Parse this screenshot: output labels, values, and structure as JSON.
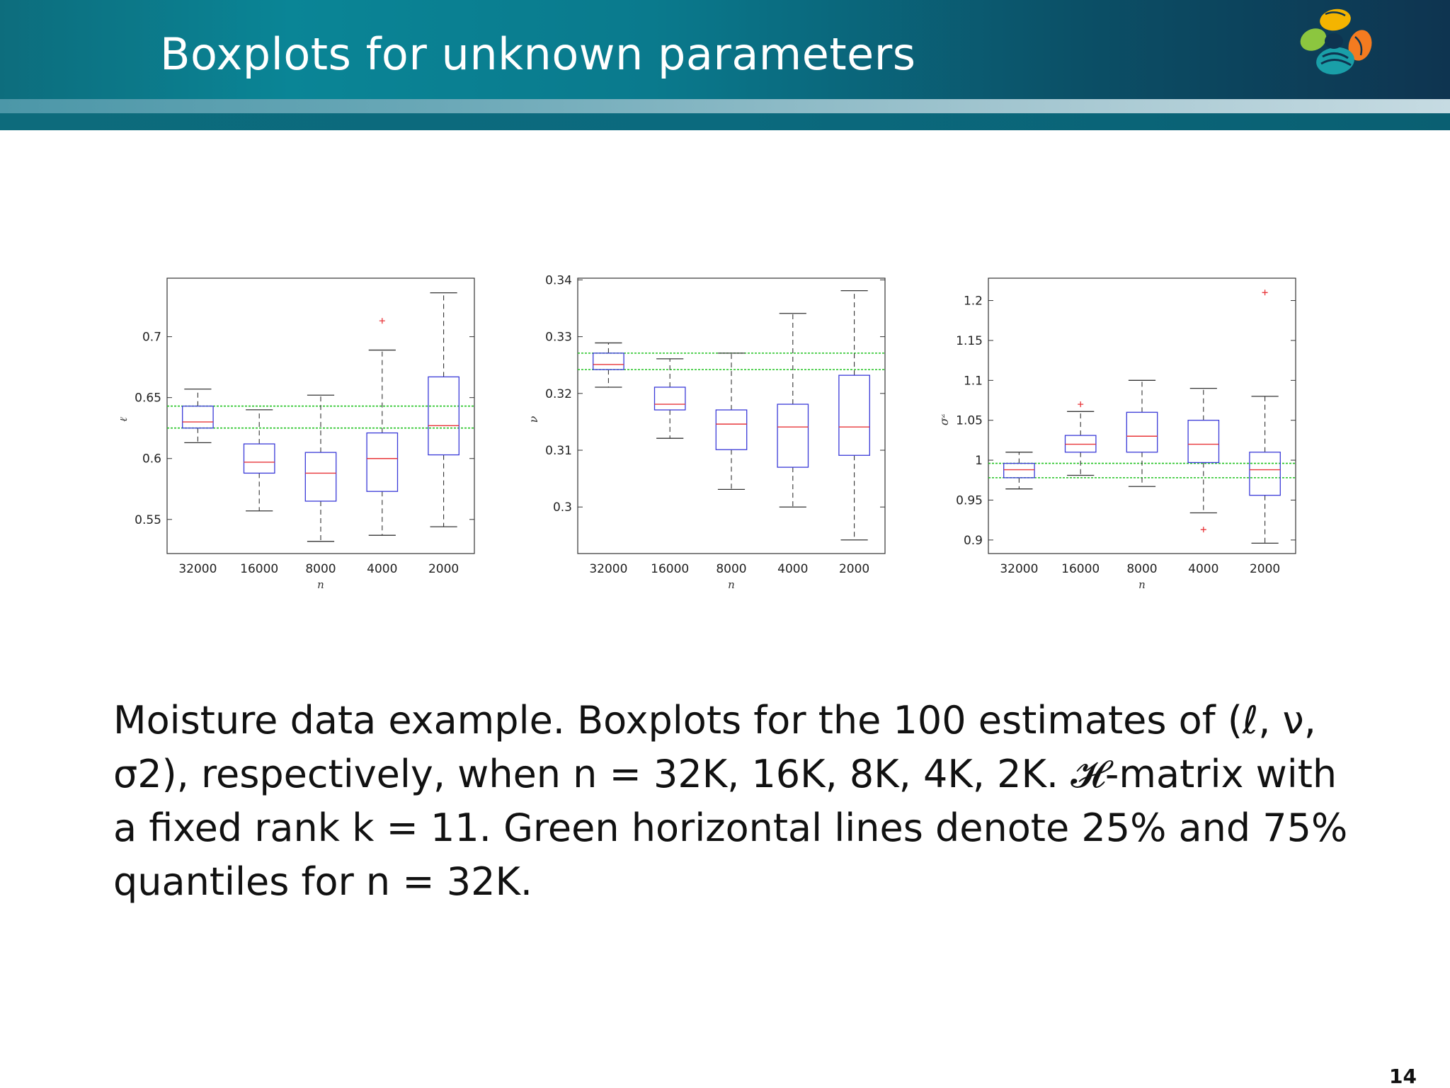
{
  "slide": {
    "title": "Boxplots for unknown parameters",
    "caption": "Moisture data example. Boxplots for the 100 estimates of (ℓ, ν, σ2), respectively, when n = 32K, 16K, 8K, 4K, 2K. 𝓗-matrix with a fixed rank k = 11. Green horizontal lines denote 25% and 75% quantiles for n = 32K.",
    "page_number": "14"
  },
  "colors": {
    "box": "#3a3ad8",
    "median": "#e8363a",
    "whisker": "#333333",
    "outlier": "#e8363a",
    "reference_lines": "#22c322"
  },
  "chart_data": [
    {
      "type": "box",
      "categories": [
        "32000",
        "16000",
        "8000",
        "4000",
        "2000"
      ],
      "xlabel": "n",
      "ylabel": "ℓ",
      "ylim": [
        0.522,
        0.748
      ],
      "yticks": [
        0.55,
        0.6,
        0.65,
        0.7
      ],
      "ytick_labels": [
        "0.55",
        "0.6",
        "0.65",
        "0.7"
      ],
      "boxes": [
        {
          "min": 0.613,
          "q1": 0.625,
          "median": 0.63,
          "q3": 0.643,
          "max": 0.657,
          "outliers": []
        },
        {
          "min": 0.557,
          "q1": 0.588,
          "median": 0.597,
          "q3": 0.612,
          "max": 0.64,
          "outliers": []
        },
        {
          "min": 0.532,
          "q1": 0.565,
          "median": 0.588,
          "q3": 0.605,
          "max": 0.652,
          "outliers": []
        },
        {
          "min": 0.537,
          "q1": 0.573,
          "median": 0.6,
          "q3": 0.621,
          "max": 0.689,
          "outliers": [
            0.713
          ]
        },
        {
          "min": 0.544,
          "q1": 0.603,
          "median": 0.627,
          "q3": 0.667,
          "max": 0.736,
          "outliers": []
        }
      ],
      "reference_lines": [
        0.625,
        0.643
      ]
    },
    {
      "type": "box",
      "categories": [
        "32000",
        "16000",
        "8000",
        "4000",
        "2000"
      ],
      "xlabel": "n",
      "ylabel": "ν",
      "ylim": [
        0.2918,
        0.3403
      ],
      "yticks": [
        0.3,
        0.31,
        0.32,
        0.33,
        0.34
      ],
      "ytick_labels": [
        "0.3",
        "0.31",
        "0.32",
        "0.33",
        "0.34"
      ],
      "boxes": [
        {
          "min": 0.3211,
          "q1": 0.3242,
          "median": 0.3251,
          "q3": 0.3271,
          "max": 0.3289,
          "outliers": []
        },
        {
          "min": 0.3121,
          "q1": 0.3171,
          "median": 0.3181,
          "q3": 0.3211,
          "max": 0.3261,
          "outliers": []
        },
        {
          "min": 0.3031,
          "q1": 0.3101,
          "median": 0.3146,
          "q3": 0.3171,
          "max": 0.3271,
          "outliers": []
        },
        {
          "min": 0.3,
          "q1": 0.307,
          "median": 0.3141,
          "q3": 0.3181,
          "max": 0.3341,
          "outliers": []
        },
        {
          "min": 0.2942,
          "q1": 0.3091,
          "median": 0.3141,
          "q3": 0.3232,
          "max": 0.3381,
          "outliers": []
        }
      ],
      "reference_lines": [
        0.3242,
        0.3271
      ]
    },
    {
      "type": "box",
      "categories": [
        "32000",
        "16000",
        "8000",
        "4000",
        "2000"
      ],
      "xlabel": "n",
      "ylabel": "σ²",
      "ylim": [
        0.883,
        1.228
      ],
      "yticks": [
        0.9,
        0.95,
        1,
        1.05,
        1.1,
        1.15,
        1.2
      ],
      "ytick_labels": [
        "0.9",
        "0.95",
        "1",
        "1.05",
        "1.1",
        "1.15",
        "1.2"
      ],
      "boxes": [
        {
          "min": 0.964,
          "q1": 0.978,
          "median": 0.988,
          "q3": 0.996,
          "max": 1.01,
          "outliers": []
        },
        {
          "min": 0.981,
          "q1": 1.01,
          "median": 1.02,
          "q3": 1.031,
          "max": 1.061,
          "outliers": [
            1.07
          ]
        },
        {
          "min": 0.967,
          "q1": 1.01,
          "median": 1.03,
          "q3": 1.06,
          "max": 1.1,
          "outliers": []
        },
        {
          "min": 0.934,
          "q1": 0.997,
          "median": 1.02,
          "q3": 1.05,
          "max": 1.09,
          "outliers": [
            0.913
          ]
        },
        {
          "min": 0.896,
          "q1": 0.956,
          "median": 0.988,
          "q3": 1.01,
          "max": 1.08,
          "outliers": [
            1.21
          ]
        }
      ],
      "reference_lines": [
        0.978,
        0.996
      ]
    }
  ]
}
